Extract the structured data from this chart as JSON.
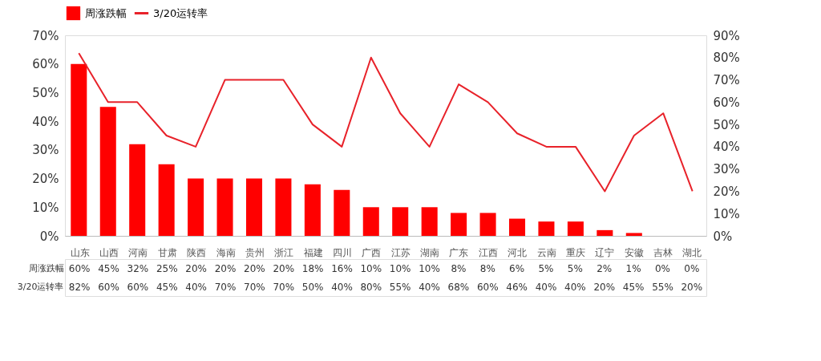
{
  "chart_data": {
    "type": "bar",
    "categories": [
      "山东",
      "山西",
      "河南",
      "甘肃",
      "陕西",
      "海南",
      "贵州",
      "浙江",
      "福建",
      "四川",
      "广西",
      "江苏",
      "湖南",
      "广东",
      "江西",
      "河北",
      "云南",
      "重庆",
      "辽宁",
      "安徽",
      "吉林",
      "湖北"
    ],
    "series": [
      {
        "name": "周涨跌幅",
        "color": "#ff0000",
        "values": [
          60,
          45,
          32,
          25,
          20,
          20,
          20,
          20,
          18,
          16,
          10,
          10,
          10,
          8,
          8,
          6,
          5,
          5,
          2,
          1,
          0,
          0
        ],
        "value_labels": [
          "60%",
          "45%",
          "32%",
          "25%",
          "20%",
          "20%",
          "20%",
          "20%",
          "18%",
          "16%",
          "10%",
          "10%",
          "10%",
          "8%",
          "8%",
          "6%",
          "5%",
          "5%",
          "2%",
          "1%",
          "0%",
          "0%"
        ]
      },
      {
        "name": "3/20运转率",
        "type": "line",
        "axis": "y2",
        "color": "#e8222a",
        "values": [
          82,
          60,
          60,
          45,
          40,
          70,
          70,
          70,
          50,
          40,
          80,
          55,
          40,
          68,
          60,
          46,
          40,
          40,
          20,
          45,
          55,
          20
        ],
        "value_labels": [
          "82%",
          "60%",
          "60%",
          "45%",
          "40%",
          "70%",
          "70%",
          "70%",
          "50%",
          "40%",
          "80%",
          "55%",
          "40%",
          "68%",
          "60%",
          "46%",
          "40%",
          "40%",
          "20%",
          "45%",
          "55%",
          "20%"
        ]
      }
    ],
    "ylim": [
      0,
      70
    ],
    "yticks": [
      {
        "value": 0,
        "label": "0%"
      },
      {
        "value": 10,
        "label": "10%"
      },
      {
        "value": 20,
        "label": "20%"
      },
      {
        "value": 30,
        "label": "30%"
      },
      {
        "value": 40,
        "label": "40%"
      },
      {
        "value": 50,
        "label": "50%"
      },
      {
        "value": 60,
        "label": "60%"
      },
      {
        "value": 70,
        "label": "70%"
      }
    ],
    "y2lim": [
      0,
      90
    ],
    "y2ticks": [
      {
        "value": 0,
        "label": "0%"
      },
      {
        "value": 10,
        "label": "10%"
      },
      {
        "value": 20,
        "label": "20%"
      },
      {
        "value": 30,
        "label": "30%"
      },
      {
        "value": 40,
        "label": "40%"
      },
      {
        "value": 50,
        "label": "50%"
      },
      {
        "value": 60,
        "label": "60%"
      },
      {
        "value": 70,
        "label": "70%"
      },
      {
        "value": 80,
        "label": "80%"
      },
      {
        "value": 90,
        "label": "90%"
      }
    ],
    "grid": false,
    "legend": "top",
    "line_style": "solid",
    "marker": "none"
  }
}
